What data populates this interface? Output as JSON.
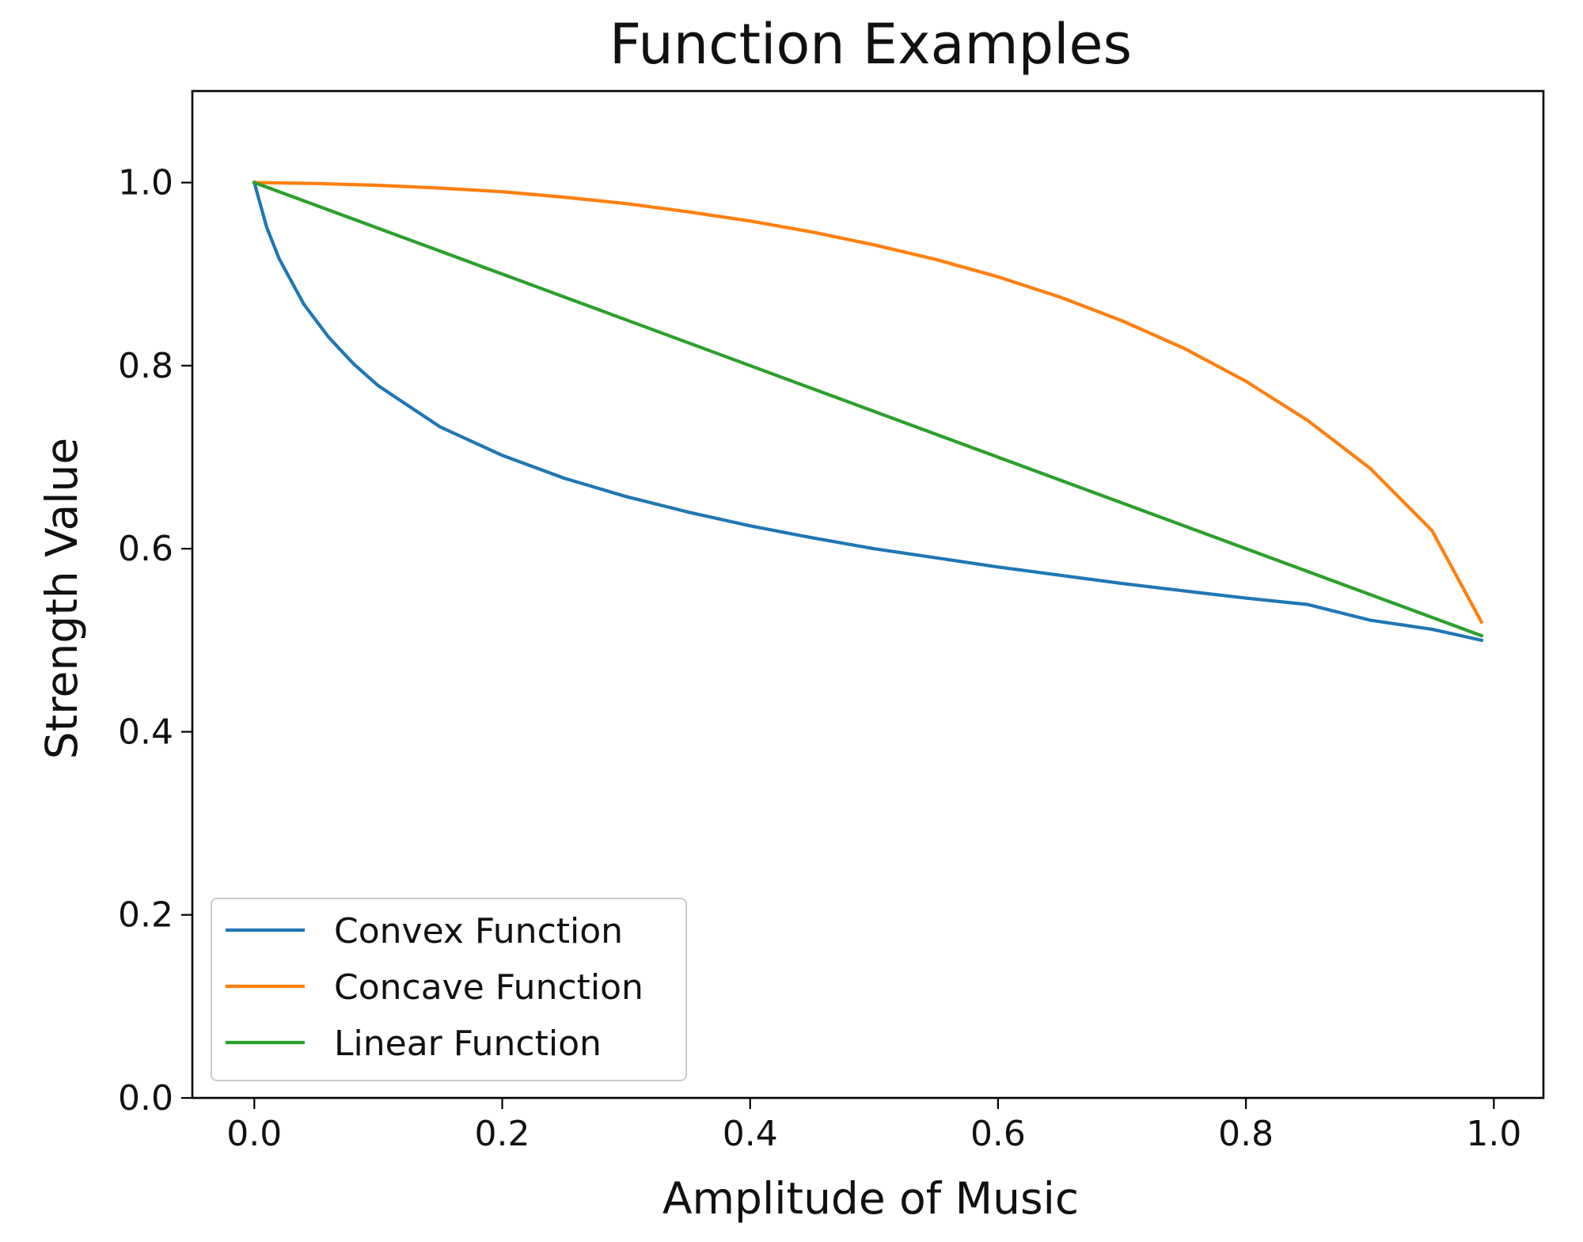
{
  "chart_data": {
    "type": "line",
    "title": "Function Examples",
    "xlabel": "Amplitude of Music",
    "ylabel": "Strength Value",
    "xlim": [
      -0.05,
      1.04
    ],
    "ylim": [
      0.0,
      1.1
    ],
    "xticks": [
      0.0,
      0.2,
      0.4,
      0.6,
      0.8,
      1.0
    ],
    "xtick_labels": [
      "0.0",
      "0.2",
      "0.4",
      "0.6",
      "0.8",
      "1.0"
    ],
    "yticks": [
      0.0,
      0.2,
      0.4,
      0.6,
      0.8,
      1.0
    ],
    "ytick_labels": [
      "0.0",
      "0.2",
      "0.4",
      "0.6",
      "0.8",
      "1.0"
    ],
    "grid": false,
    "legend_position": "lower-left",
    "series": [
      {
        "name": "Convex Function",
        "color": "#1f77b4",
        "x": [
          0.0,
          0.01,
          0.02,
          0.04,
          0.06,
          0.08,
          0.1,
          0.15,
          0.2,
          0.25,
          0.3,
          0.35,
          0.4,
          0.45,
          0.5,
          0.55,
          0.6,
          0.65,
          0.7,
          0.75,
          0.8,
          0.85,
          0.9,
          0.95,
          0.99
        ],
        "y": [
          1.0,
          0.951,
          0.917,
          0.867,
          0.831,
          0.802,
          0.778,
          0.733,
          0.702,
          0.677,
          0.657,
          0.64,
          0.625,
          0.612,
          0.6,
          0.59,
          0.58,
          0.571,
          0.562,
          0.554,
          0.546,
          0.539,
          0.522,
          0.512,
          0.5
        ]
      },
      {
        "name": "Concave Function",
        "color": "#ff7f0e",
        "x": [
          0.0,
          0.05,
          0.1,
          0.15,
          0.2,
          0.25,
          0.3,
          0.35,
          0.4,
          0.45,
          0.5,
          0.55,
          0.6,
          0.65,
          0.7,
          0.75,
          0.8,
          0.85,
          0.9,
          0.95,
          0.99
        ],
        "y": [
          1.0,
          0.999,
          0.997,
          0.994,
          0.99,
          0.984,
          0.977,
          0.968,
          0.958,
          0.946,
          0.932,
          0.916,
          0.897,
          0.875,
          0.849,
          0.819,
          0.783,
          0.74,
          0.688,
          0.62,
          0.52
        ]
      },
      {
        "name": "Linear Function",
        "color": "#2ca02c",
        "x": [
          0.0,
          0.99
        ],
        "y": [
          1.0,
          0.505
        ]
      }
    ]
  }
}
